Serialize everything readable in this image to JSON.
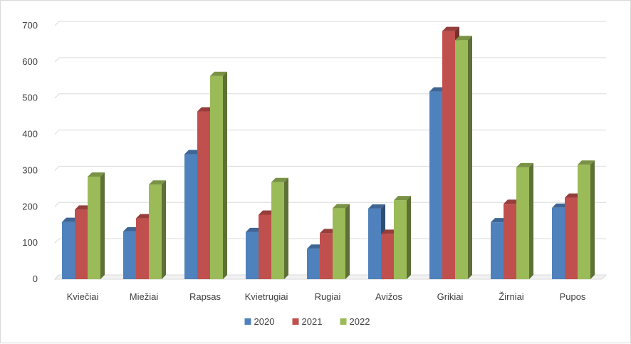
{
  "chart_data": {
    "type": "bar",
    "title": "",
    "xlabel": "",
    "ylabel": "",
    "ylim": [
      0,
      700
    ],
    "yticks": [
      0,
      100,
      200,
      300,
      400,
      500,
      600,
      700
    ],
    "grid": true,
    "legend": "bottom",
    "categories": [
      "Kviečiai",
      "Miežiai",
      "Rapsas",
      "Kvietrugiai",
      "Rugiai",
      "Avižos",
      "Grikiai",
      "Žirniai",
      "Pupos"
    ],
    "series": [
      {
        "name": "2020",
        "color": "#4f81bd",
        "values": [
          158,
          132,
          345,
          130,
          84,
          195,
          518,
          157,
          197
        ]
      },
      {
        "name": "2021",
        "color": "#c0504d",
        "values": [
          192,
          168,
          463,
          178,
          127,
          125,
          685,
          208,
          225
        ]
      },
      {
        "name": "2022",
        "color": "#9bbb59",
        "values": [
          283,
          261,
          561,
          268,
          196,
          218,
          660,
          309,
          316
        ]
      }
    ]
  }
}
